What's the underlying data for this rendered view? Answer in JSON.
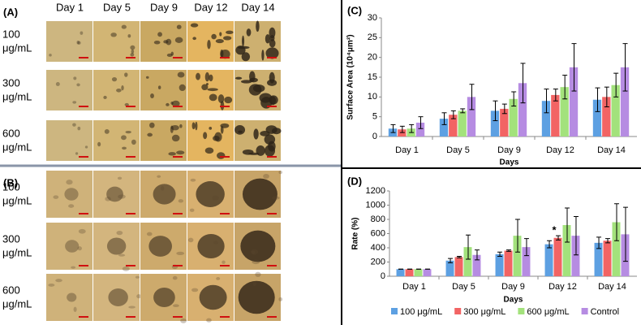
{
  "panels": [
    {
      "label": "(A)",
      "columns": [
        "Day 1",
        "Day 5",
        "Day 9",
        "Day 12",
        "Day 14"
      ],
      "rows": [
        [
          "100",
          "μg/mL"
        ],
        [
          "300",
          "μg/mL"
        ],
        [
          "600",
          "μg/mL"
        ]
      ]
    },
    {
      "label": "(B)",
      "rows": [
        [
          "100",
          "μg/mL"
        ],
        [
          "300",
          "μg/mL"
        ],
        [
          "600",
          "μg/mL"
        ]
      ]
    }
  ],
  "chart_data": [
    {
      "type": "bar",
      "panel_label": "(C)",
      "y_label": "Surface Area (10⁴μm²)",
      "x_label": "Days",
      "categories": [
        "Day 1",
        "Day 5",
        "Day 9",
        "Day 12",
        "Day 14"
      ],
      "ylim": [
        0,
        30
      ],
      "yticks": [
        0,
        5,
        10,
        15,
        20,
        25,
        30
      ],
      "series": [
        {
          "color": "#5da0e2",
          "values": [
            2,
            4.5,
            6.5,
            9,
            9.3
          ],
          "errors": [
            1,
            1.5,
            2.5,
            3,
            3
          ]
        },
        {
          "color": "#f26464",
          "values": [
            1.8,
            5.5,
            7,
            10.5,
            10
          ],
          "errors": [
            0.8,
            1,
            1.2,
            1.5,
            2.5
          ]
        },
        {
          "color": "#a3e27c",
          "values": [
            2,
            6.5,
            9.5,
            12.5,
            13
          ],
          "errors": [
            1,
            0.5,
            1.8,
            3,
            3
          ]
        },
        {
          "color": "#b68ce2",
          "values": [
            3.5,
            10,
            13.5,
            17.5,
            17.5
          ],
          "errors": [
            1.5,
            3.2,
            5,
            6,
            6
          ]
        }
      ]
    },
    {
      "type": "bar",
      "panel_label": "(D)",
      "y_label": "Rate (%)",
      "x_label": "Days",
      "annotation": "*",
      "categories": [
        "Day 1",
        "Day 5",
        "Day 9",
        "Day 12",
        "Day 14"
      ],
      "ylim": [
        0,
        1200
      ],
      "yticks": [
        0,
        200,
        400,
        600,
        800,
        1000,
        1200
      ],
      "series": [
        {
          "name": "100 μg/mL",
          "color": "#5da0e2",
          "values": [
            100,
            220,
            310,
            450,
            470
          ],
          "errors": [
            0,
            30,
            30,
            50,
            80
          ]
        },
        {
          "name": "300 μg/mL",
          "color": "#f26464",
          "values": [
            100,
            270,
            360,
            540,
            500
          ],
          "errors": [
            0,
            10,
            10,
            30,
            30
          ]
        },
        {
          "name": "600 μg/mL",
          "color": "#a3e27c",
          "values": [
            100,
            410,
            570,
            720,
            760
          ],
          "errors": [
            0,
            170,
            230,
            240,
            260
          ]
        },
        {
          "name": "Control",
          "color": "#b68ce2",
          "values": [
            100,
            300,
            410,
            570,
            590
          ],
          "errors": [
            0,
            70,
            120,
            270,
            380
          ]
        }
      ]
    }
  ]
}
